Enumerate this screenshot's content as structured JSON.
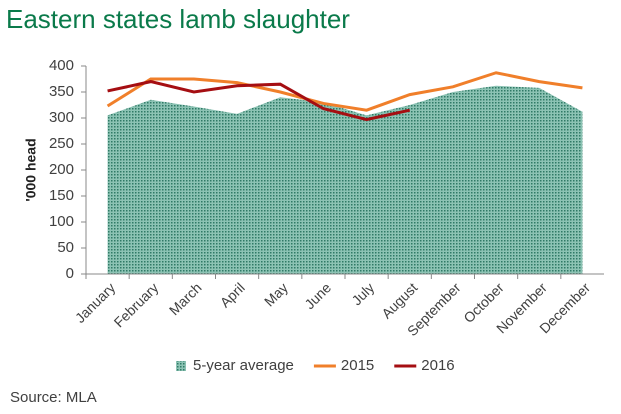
{
  "chart_data": {
    "type": "area-line",
    "title": "Eastern states lamb slaughter",
    "y_label": "'000 head",
    "source": "Source: MLA",
    "categories": [
      "January",
      "February",
      "March",
      "April",
      "May",
      "June",
      "July",
      "August",
      "September",
      "October",
      "November",
      "December"
    ],
    "series": [
      {
        "name": "5-year average",
        "type": "area",
        "color": "#4f9a86",
        "values": [
          305,
          335,
          322,
          308,
          340,
          330,
          305,
          325,
          350,
          362,
          358,
          312
        ]
      },
      {
        "name": "2015",
        "type": "line",
        "color": "#f07f2a",
        "values": [
          323,
          375,
          375,
          368,
          350,
          328,
          315,
          345,
          360,
          387,
          370,
          358
        ]
      },
      {
        "name": "2016",
        "type": "line",
        "color": "#a50e12",
        "values": [
          352,
          370,
          350,
          362,
          365,
          318,
          297,
          315,
          null,
          null,
          null,
          null
        ]
      }
    ],
    "ylim": [
      0,
      400
    ],
    "yticks": [
      0,
      50,
      100,
      150,
      200,
      250,
      300,
      350,
      400
    ],
    "grid": false,
    "legend": "bottom"
  }
}
